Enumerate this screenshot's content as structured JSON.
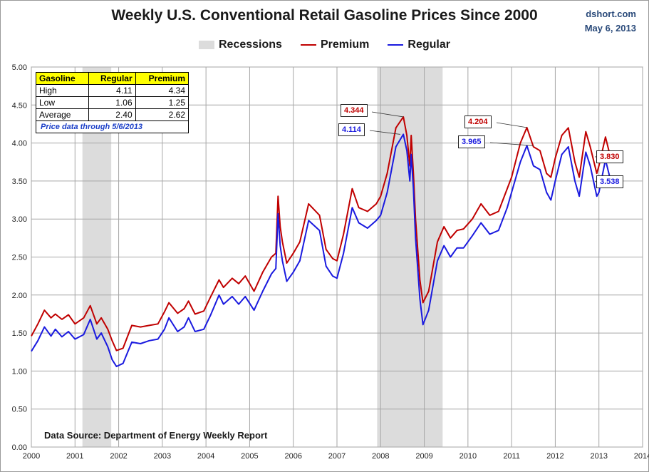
{
  "header": {
    "title": "Weekly U.S. Conventional Retail Gasoline Prices Since 2000",
    "brand": "dshort.com",
    "date": "May 6, 2013"
  },
  "legend": {
    "recessions": "Recessions",
    "premium": "Premium",
    "regular": "Regular"
  },
  "table": {
    "headers": [
      "Gasoline",
      "Regular",
      "Premium"
    ],
    "rows": [
      {
        "label": "High",
        "regular": "4.11",
        "premium": "4.34"
      },
      {
        "label": "Low",
        "regular": "1.06",
        "premium": "1.25"
      },
      {
        "label": "Average",
        "regular": "2.40",
        "premium": "2.62"
      }
    ],
    "note": "Price data through 5/6/2013"
  },
  "source": "Data Source: Department of Energy Weekly Report",
  "callouts": {
    "premium_peak_2008": "4.344",
    "regular_peak_2008": "4.114",
    "premium_peak_2011": "4.204",
    "regular_peak_2011": "3.965",
    "premium_latest": "3.830",
    "regular_latest": "3.538"
  },
  "colors": {
    "premium": "#c00000",
    "regular": "#1a1adf",
    "recession": "#dcdcdc",
    "grid": "#a6a6a6"
  },
  "chart_data": {
    "type": "line",
    "title": "Weekly U.S. Conventional Retail Gasoline Prices Since 2000",
    "xlabel": "",
    "ylabel": "",
    "xlim": [
      2000,
      2014
    ],
    "ylim": [
      0,
      5
    ],
    "x_ticks": [
      "2000",
      "2001",
      "2002",
      "2003",
      "2004",
      "2005",
      "2006",
      "2007",
      "2008",
      "2009",
      "2010",
      "2011",
      "2012",
      "2013",
      "2014"
    ],
    "y_ticks": [
      "0.00",
      "0.50",
      "1.00",
      "1.50",
      "2.00",
      "2.50",
      "3.00",
      "3.50",
      "4.00",
      "4.50",
      "5.00"
    ],
    "grid": true,
    "legend_position": "top-center",
    "recessions": [
      [
        2001.17,
        2001.83
      ],
      [
        2007.92,
        2009.42
      ]
    ],
    "series": [
      {
        "name": "Premium",
        "x": [
          2000.0,
          2000.15,
          2000.3,
          2000.45,
          2000.55,
          2000.7,
          2000.85,
          2001.0,
          2001.2,
          2001.35,
          2001.5,
          2001.6,
          2001.75,
          2001.85,
          2001.95,
          2002.1,
          2002.3,
          2002.5,
          2002.7,
          2002.9,
          2003.05,
          2003.15,
          2003.35,
          2003.5,
          2003.6,
          2003.75,
          2003.95,
          2004.1,
          2004.3,
          2004.4,
          2004.6,
          2004.75,
          2004.9,
          2005.1,
          2005.3,
          2005.5,
          2005.6,
          2005.65,
          2005.7,
          2005.75,
          2005.85,
          2006.0,
          2006.15,
          2006.35,
          2006.6,
          2006.75,
          2006.9,
          2007.0,
          2007.15,
          2007.35,
          2007.5,
          2007.7,
          2007.9,
          2008.0,
          2008.15,
          2008.35,
          2008.52,
          2008.6,
          2008.67,
          2008.7,
          2008.75,
          2008.8,
          2008.9,
          2008.97,
          2009.1,
          2009.3,
          2009.45,
          2009.6,
          2009.75,
          2009.9,
          2010.1,
          2010.3,
          2010.5,
          2010.7,
          2010.9,
          2011.0,
          2011.2,
          2011.35,
          2011.5,
          2011.65,
          2011.8,
          2011.9,
          2012.0,
          2012.15,
          2012.3,
          2012.45,
          2012.55,
          2012.7,
          2012.8,
          2012.95,
          2013.0,
          2013.15,
          2013.25,
          2013.35
        ],
        "values": [
          1.46,
          1.62,
          1.8,
          1.7,
          1.75,
          1.68,
          1.74,
          1.62,
          1.7,
          1.86,
          1.62,
          1.7,
          1.55,
          1.4,
          1.27,
          1.3,
          1.6,
          1.58,
          1.6,
          1.62,
          1.78,
          1.9,
          1.76,
          1.82,
          1.92,
          1.75,
          1.79,
          1.97,
          2.2,
          2.1,
          2.22,
          2.15,
          2.25,
          2.05,
          2.3,
          2.5,
          2.55,
          3.3,
          2.9,
          2.7,
          2.42,
          2.55,
          2.7,
          3.2,
          3.05,
          2.6,
          2.48,
          2.45,
          2.8,
          3.4,
          3.15,
          3.1,
          3.2,
          3.3,
          3.6,
          4.2,
          4.344,
          4.1,
          3.7,
          4.1,
          3.6,
          3.0,
          2.2,
          1.9,
          2.05,
          2.7,
          2.9,
          2.75,
          2.85,
          2.87,
          3.0,
          3.2,
          3.05,
          3.1,
          3.4,
          3.55,
          4.0,
          4.204,
          3.95,
          3.9,
          3.6,
          3.55,
          3.8,
          4.1,
          4.2,
          3.75,
          3.55,
          4.15,
          3.95,
          3.6,
          3.7,
          4.08,
          3.85,
          3.83
        ]
      },
      {
        "name": "Regular",
        "x": [
          2000.0,
          2000.15,
          2000.3,
          2000.45,
          2000.55,
          2000.7,
          2000.85,
          2001.0,
          2001.2,
          2001.35,
          2001.5,
          2001.6,
          2001.75,
          2001.85,
          2001.95,
          2002.1,
          2002.3,
          2002.5,
          2002.7,
          2002.9,
          2003.05,
          2003.15,
          2003.35,
          2003.5,
          2003.6,
          2003.75,
          2003.95,
          2004.1,
          2004.3,
          2004.4,
          2004.6,
          2004.75,
          2004.9,
          2005.1,
          2005.3,
          2005.5,
          2005.6,
          2005.65,
          2005.7,
          2005.75,
          2005.85,
          2006.0,
          2006.15,
          2006.35,
          2006.6,
          2006.75,
          2006.9,
          2007.0,
          2007.15,
          2007.35,
          2007.5,
          2007.7,
          2007.9,
          2008.0,
          2008.15,
          2008.35,
          2008.52,
          2008.6,
          2008.67,
          2008.7,
          2008.75,
          2008.8,
          2008.9,
          2008.97,
          2009.1,
          2009.3,
          2009.45,
          2009.6,
          2009.75,
          2009.9,
          2010.1,
          2010.3,
          2010.5,
          2010.7,
          2010.9,
          2011.0,
          2011.2,
          2011.35,
          2011.5,
          2011.65,
          2011.8,
          2011.9,
          2012.0,
          2012.15,
          2012.3,
          2012.45,
          2012.55,
          2012.7,
          2012.8,
          2012.95,
          2013.0,
          2013.15,
          2013.25,
          2013.35
        ],
        "values": [
          1.26,
          1.4,
          1.58,
          1.46,
          1.55,
          1.45,
          1.52,
          1.42,
          1.48,
          1.68,
          1.42,
          1.5,
          1.32,
          1.15,
          1.06,
          1.1,
          1.38,
          1.36,
          1.4,
          1.42,
          1.55,
          1.7,
          1.52,
          1.58,
          1.7,
          1.52,
          1.55,
          1.73,
          2.0,
          1.88,
          1.98,
          1.88,
          1.98,
          1.8,
          2.05,
          2.28,
          2.35,
          3.07,
          2.65,
          2.45,
          2.18,
          2.3,
          2.45,
          2.98,
          2.85,
          2.38,
          2.25,
          2.22,
          2.55,
          3.15,
          2.95,
          2.88,
          2.98,
          3.05,
          3.35,
          3.95,
          4.114,
          3.9,
          3.5,
          3.85,
          3.4,
          2.75,
          1.95,
          1.61,
          1.8,
          2.45,
          2.65,
          2.5,
          2.62,
          2.62,
          2.78,
          2.95,
          2.8,
          2.85,
          3.15,
          3.35,
          3.75,
          3.965,
          3.7,
          3.65,
          3.35,
          3.25,
          3.5,
          3.85,
          3.95,
          3.5,
          3.3,
          3.88,
          3.7,
          3.3,
          3.35,
          3.78,
          3.55,
          3.538
        ]
      }
    ]
  }
}
